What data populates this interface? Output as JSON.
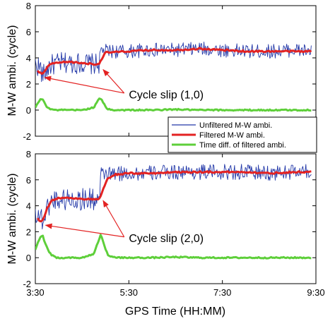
{
  "colors": {
    "unfiltered": "#2338a8",
    "filtered": "#e32222",
    "diff": "#5ecf3a",
    "arrow": "#e32222",
    "axis": "#000000"
  },
  "xlabel": "GPS Time (HH:MM)",
  "legend": {
    "placement": "between panels, right",
    "entries": [
      "Unfiltered M-W ambi.",
      "Filtered M-W ambi.",
      "Time diff. of filtered ambi."
    ]
  },
  "chart_data": [
    {
      "type": "line",
      "panel": "top",
      "ylabel": "M-W ambi. (cycle)",
      "ylim": [
        -2,
        8
      ],
      "yticks": [
        "-2",
        "0",
        "2",
        "4",
        "6",
        "8"
      ],
      "xlim": [
        3.5,
        9.5
      ],
      "xticks": [
        {
          "value": 3.5,
          "label": ""
        },
        {
          "value": 5.5,
          "label": ""
        },
        {
          "value": 7.5,
          "label": ""
        },
        {
          "value": 9.5,
          "label": ""
        }
      ],
      "grid": false,
      "annotation": "Cycle slip (1,0)",
      "series": [
        {
          "name": "Unfiltered M-W ambi.",
          "role": "unfiltered",
          "noise": 0.55,
          "x": [
            3.5,
            3.62,
            3.64,
            3.7,
            3.8,
            3.9,
            4.0,
            4.2,
            4.5,
            4.8,
            4.88,
            4.9,
            5.0,
            5.5,
            6.0,
            6.5,
            7.0,
            7.5,
            8.0,
            8.5,
            9.0,
            9.4
          ],
          "y": [
            3.5,
            3.2,
            2.6,
            2.8,
            3.4,
            3.5,
            3.6,
            3.6,
            3.6,
            3.5,
            3.6,
            4.6,
            4.5,
            4.5,
            4.6,
            4.6,
            4.7,
            4.6,
            4.5,
            4.5,
            4.6,
            4.5
          ]
        },
        {
          "name": "Filtered M-W ambi.",
          "role": "filtered",
          "x": [
            3.55,
            3.62,
            3.65,
            3.72,
            3.8,
            3.95,
            4.2,
            4.5,
            4.85,
            4.9,
            5.0,
            5.5,
            6.0,
            6.5,
            7.0,
            7.5,
            8.0,
            8.5,
            9.0,
            9.4
          ],
          "y": [
            3.0,
            2.8,
            2.7,
            3.1,
            3.5,
            3.6,
            3.7,
            3.6,
            3.5,
            3.8,
            4.4,
            4.5,
            4.6,
            4.6,
            4.7,
            4.6,
            4.5,
            4.5,
            4.5,
            4.5
          ]
        },
        {
          "name": "Time diff. of filtered ambi.",
          "role": "diff",
          "x": [
            3.5,
            3.6,
            3.65,
            3.7,
            3.75,
            3.82,
            3.9,
            4.2,
            4.5,
            4.75,
            4.82,
            4.88,
            4.95,
            5.02,
            5.2,
            5.5,
            6.0,
            6.5,
            7.0,
            7.5,
            8.0,
            8.5,
            9.0,
            9.4
          ],
          "y": [
            0.2,
            0.8,
            0.9,
            0.6,
            0.2,
            0.1,
            0.0,
            0.0,
            0.0,
            0.2,
            0.6,
            0.95,
            0.6,
            0.1,
            0.0,
            0.0,
            0.0,
            0.05,
            0.0,
            0.0,
            0.0,
            0.0,
            0.0,
            0.0
          ]
        }
      ],
      "arrows": [
        {
          "from": [
            5.4,
            1.3
          ],
          "to": [
            3.7,
            2.5
          ]
        },
        {
          "from": [
            5.4,
            1.3
          ],
          "to": [
            4.95,
            3.1
          ]
        }
      ],
      "annotation_at": [
        5.5,
        0.9
      ]
    },
    {
      "type": "line",
      "panel": "bottom",
      "ylabel": "M-W ambi. (cycle)",
      "ylim": [
        -2,
        8
      ],
      "yticks": [
        "-2",
        "0",
        "2",
        "4",
        "6",
        "8"
      ],
      "xlim": [
        3.5,
        9.5
      ],
      "xticks": [
        {
          "value": 3.5,
          "label": "3:30"
        },
        {
          "value": 5.5,
          "label": "5:30"
        },
        {
          "value": 7.5,
          "label": "7:30"
        },
        {
          "value": 9.5,
          "label": "9:30"
        }
      ],
      "grid": false,
      "annotation": "Cycle slip (2,0)",
      "series": [
        {
          "name": "Unfiltered M-W ambi.",
          "role": "unfiltered",
          "noise": 0.6,
          "x": [
            3.5,
            3.62,
            3.66,
            3.72,
            3.8,
            3.9,
            4.0,
            4.3,
            4.6,
            4.88,
            4.9,
            5.0,
            5.5,
            6.0,
            6.5,
            7.0,
            7.5,
            8.0,
            8.5,
            9.0,
            9.4
          ],
          "y": [
            3.5,
            3.2,
            2.8,
            3.4,
            4.2,
            4.5,
            4.5,
            4.5,
            4.5,
            4.5,
            6.4,
            6.4,
            6.5,
            6.5,
            6.6,
            6.6,
            6.6,
            6.6,
            6.5,
            6.6,
            6.6
          ]
        },
        {
          "name": "Filtered M-W ambi.",
          "role": "filtered",
          "x": [
            3.55,
            3.62,
            3.66,
            3.75,
            3.85,
            4.0,
            4.3,
            4.6,
            4.88,
            4.92,
            5.05,
            5.2,
            5.5,
            6.0,
            6.5,
            7.0,
            7.5,
            8.0,
            8.5,
            9.0,
            9.4
          ],
          "y": [
            3.0,
            2.8,
            2.9,
            3.8,
            4.4,
            4.6,
            4.6,
            4.5,
            4.5,
            5.0,
            6.1,
            6.4,
            6.5,
            6.5,
            6.6,
            6.6,
            6.6,
            6.6,
            6.5,
            6.6,
            6.6
          ]
        },
        {
          "name": "Time diff. of filtered ambi.",
          "role": "diff",
          "x": [
            3.5,
            3.58,
            3.65,
            3.7,
            3.78,
            3.85,
            3.95,
            4.2,
            4.5,
            4.75,
            4.82,
            4.9,
            4.97,
            5.05,
            5.2,
            5.5,
            6.0,
            6.5,
            7.0,
            7.5,
            8.0,
            8.5,
            9.0,
            9.4
          ],
          "y": [
            0.6,
            1.4,
            1.8,
            1.2,
            0.5,
            0.2,
            0.0,
            0.0,
            0.0,
            0.3,
            1.0,
            1.8,
            1.0,
            0.2,
            0.0,
            0.0,
            0.0,
            0.05,
            0.0,
            0.0,
            0.0,
            0.0,
            0.0,
            0.0
          ]
        }
      ],
      "arrows": [
        {
          "from": [
            5.4,
            1.6
          ],
          "to": [
            3.72,
            2.5
          ]
        },
        {
          "from": [
            5.4,
            1.6
          ],
          "to": [
            4.95,
            4.4
          ]
        }
      ],
      "annotation_at": [
        5.5,
        1.2
      ]
    }
  ]
}
